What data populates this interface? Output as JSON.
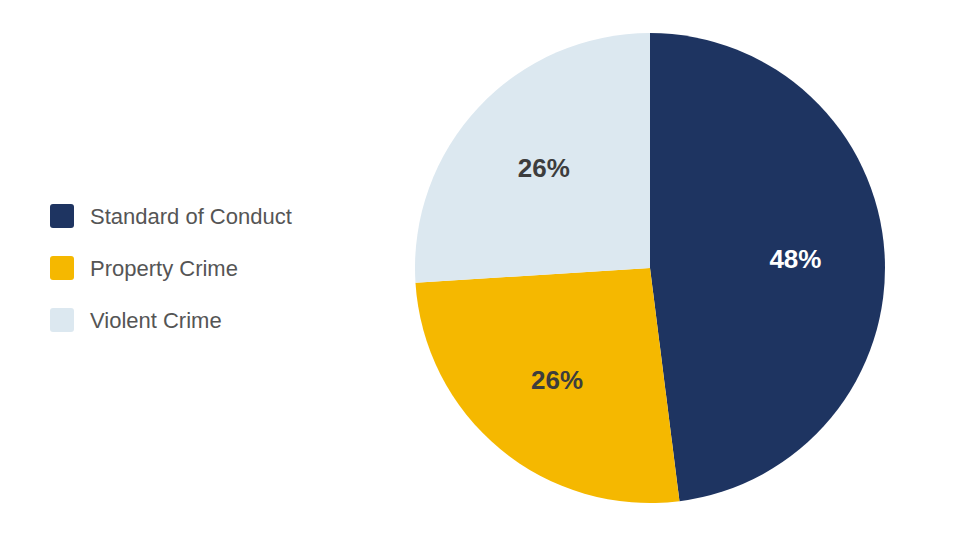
{
  "chart_data": {
    "type": "pie",
    "categories": [
      "Standard of Conduct",
      "Property Crime",
      "Violent Crime"
    ],
    "values": [
      48,
      26,
      26
    ],
    "value_labels": [
      "48%",
      "26%",
      "26%"
    ],
    "colors": [
      "#1e3461",
      "#f5b800",
      "#dce8f0"
    ],
    "data_labels": true,
    "legend": "left"
  }
}
